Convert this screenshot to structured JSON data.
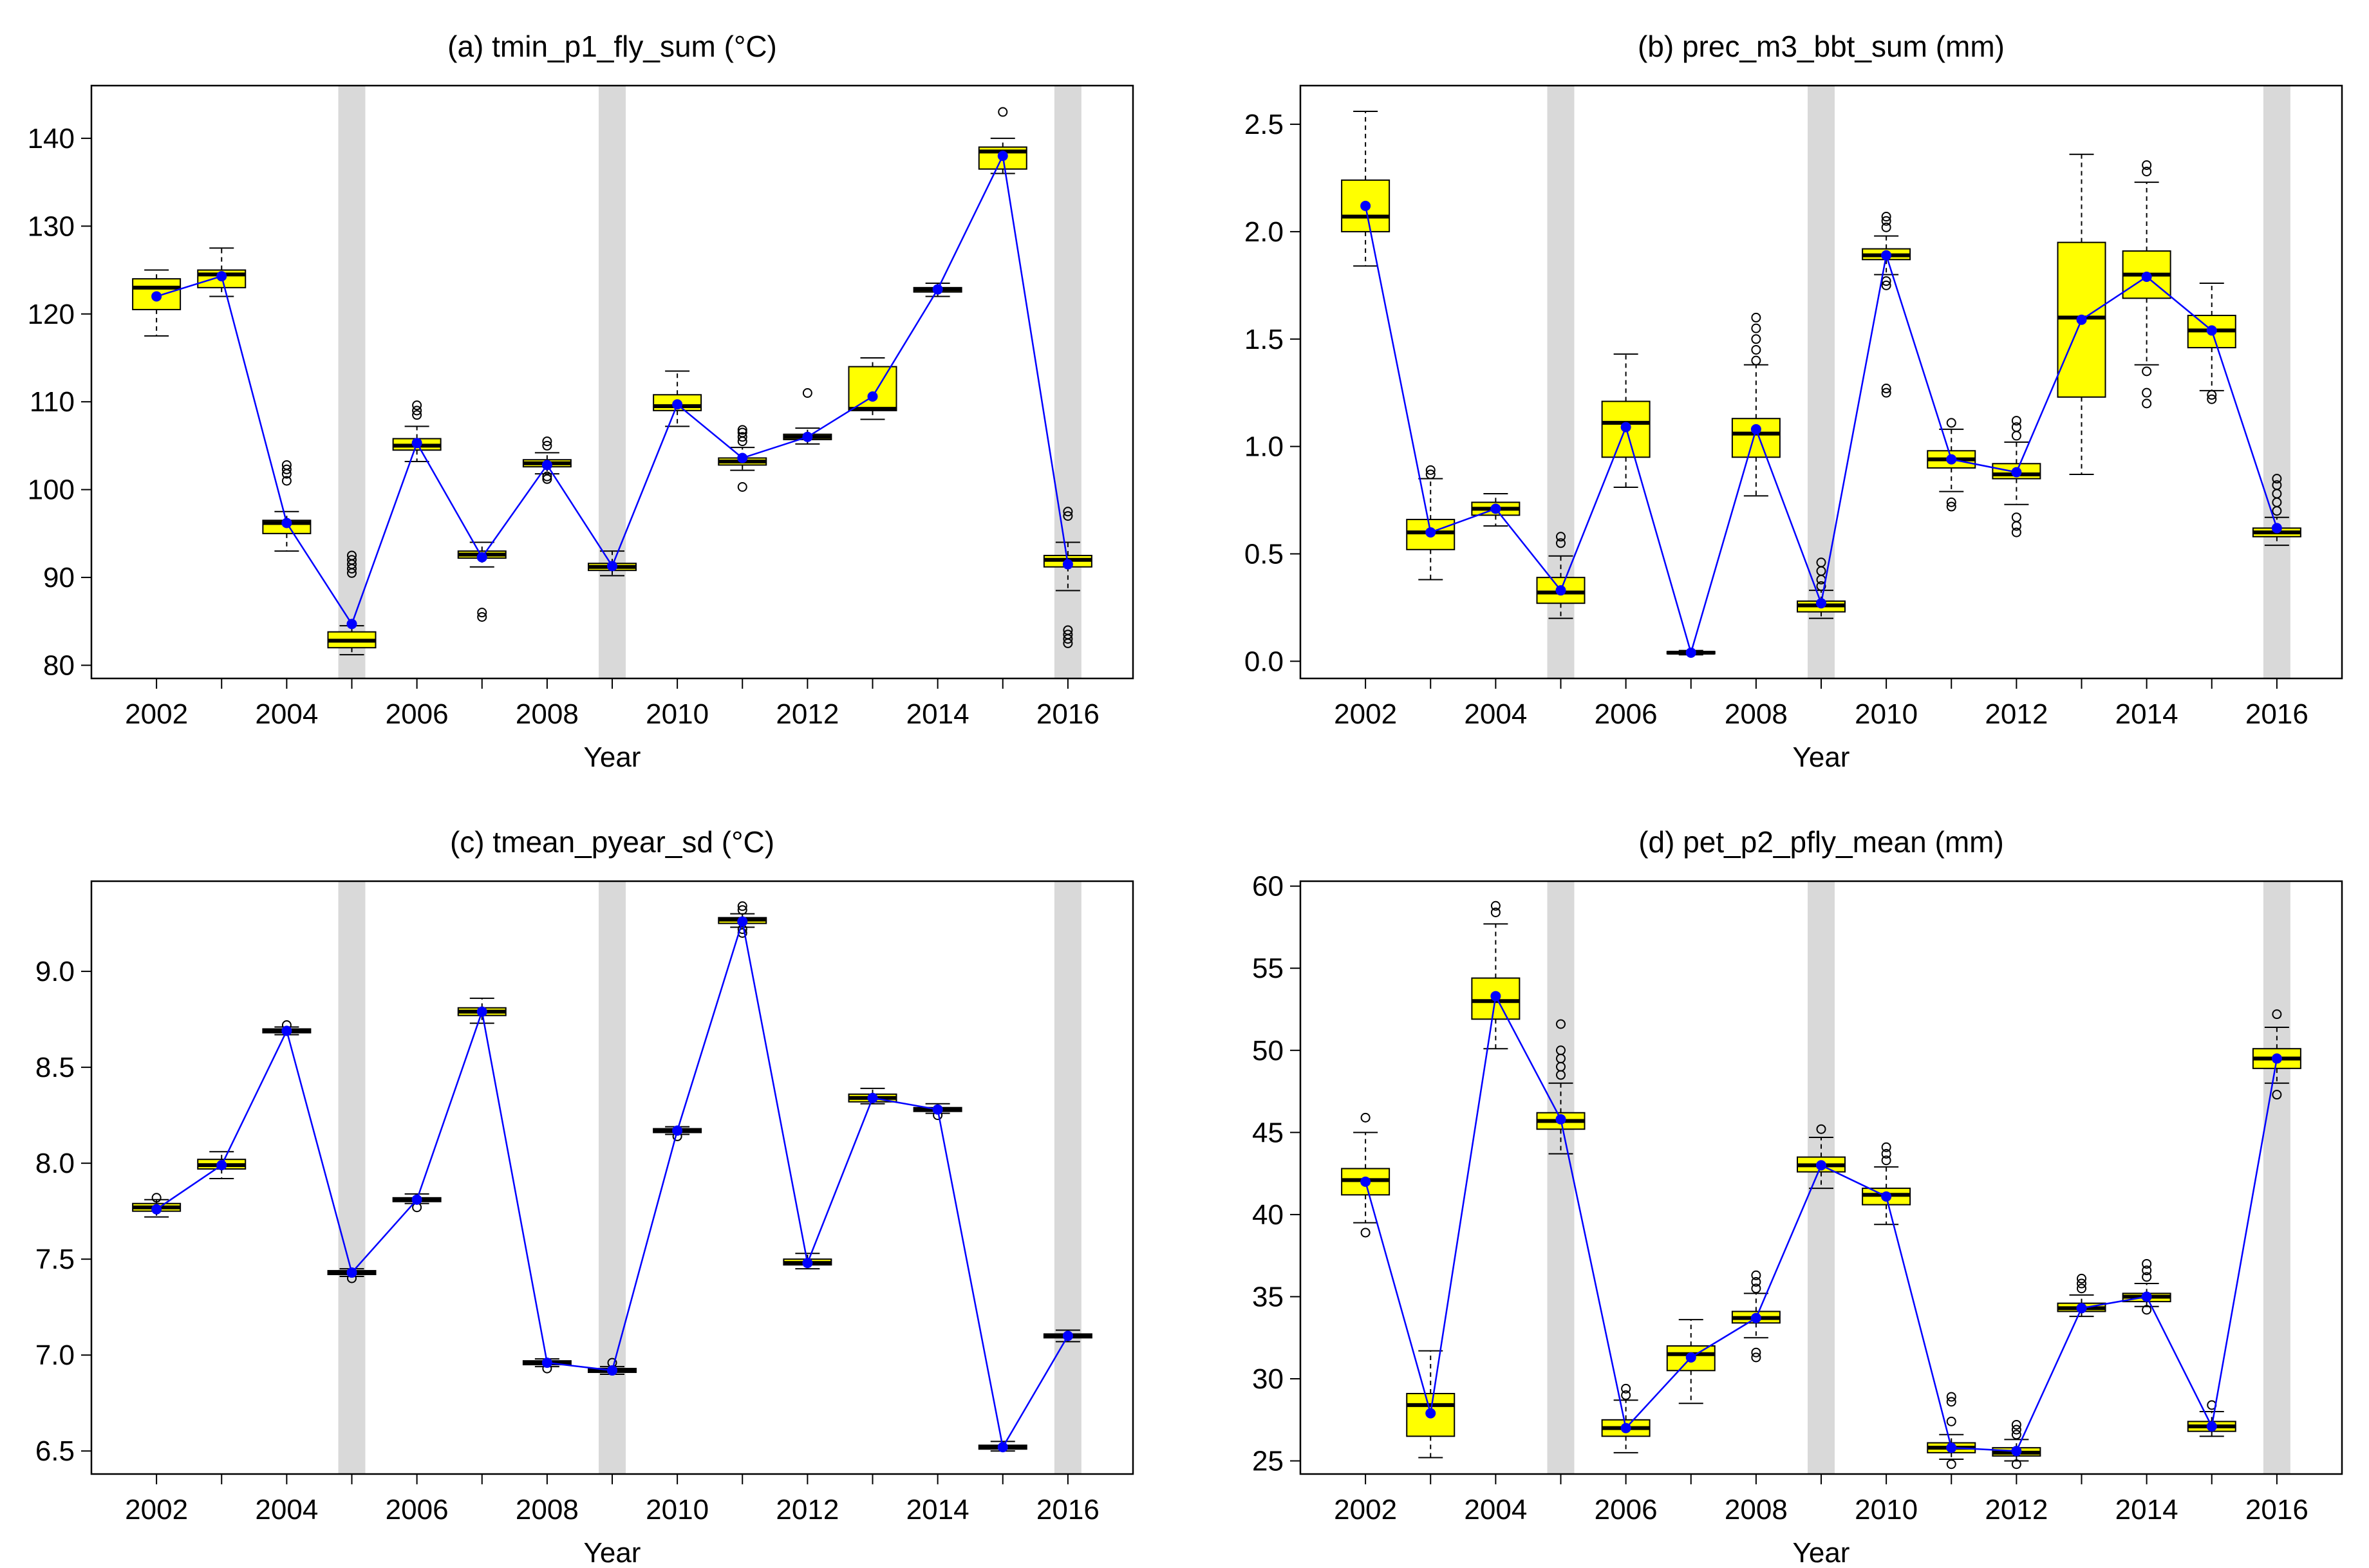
{
  "figure": {
    "xlabel": "Year",
    "series_line_color": "#0000ff",
    "box_fill_color": "#ffff00",
    "shade_color": "#d9d9d9"
  },
  "chart_data": [
    {
      "type": "boxplot",
      "title": "(a) tmin_p1_fly_sum (°C)",
      "xlabel": "Year",
      "ylabel": "",
      "xlim": [
        2001,
        2017
      ],
      "ylim": [
        78.5,
        146
      ],
      "x_ticks": [
        2002,
        2004,
        2006,
        2008,
        2010,
        2012,
        2014,
        2016
      ],
      "y_ticks": [
        80,
        90,
        100,
        110,
        120,
        130,
        140
      ],
      "highlighted_years": [
        2005,
        2009,
        2016
      ],
      "boxes": [
        {
          "year": 2002,
          "wlo": 117.5,
          "q1": 120.5,
          "median": 123,
          "q3": 124,
          "whi": 125,
          "mean": 122,
          "outliers": []
        },
        {
          "year": 2003,
          "wlo": 122,
          "q1": 123,
          "median": 124.5,
          "q3": 125,
          "whi": 127.5,
          "mean": 124.3,
          "outliers": []
        },
        {
          "year": 2004,
          "wlo": 93,
          "q1": 95,
          "median": 96.2,
          "q3": 96.5,
          "whi": 97.5,
          "mean": 96.2,
          "outliers": [
            101,
            101.8,
            102.3,
            102.8
          ]
        },
        {
          "year": 2005,
          "wlo": 81.2,
          "q1": 82,
          "median": 82.8,
          "q3": 83.8,
          "whi": 84.5,
          "mean": 84.7,
          "outliers": [
            90.5,
            91,
            91.5,
            92,
            92.5
          ]
        },
        {
          "year": 2006,
          "wlo": 103.2,
          "q1": 104.5,
          "median": 105,
          "q3": 105.8,
          "whi": 107.2,
          "mean": 105.3,
          "outliers": [
            108.5,
            109,
            109.6
          ]
        },
        {
          "year": 2007,
          "wlo": 91.2,
          "q1": 92.2,
          "median": 92.6,
          "q3": 93,
          "whi": 94,
          "mean": 92.3,
          "outliers": [
            85.5,
            86
          ]
        },
        {
          "year": 2008,
          "wlo": 101.8,
          "q1": 102.6,
          "median": 103,
          "q3": 103.4,
          "whi": 104.2,
          "mean": 102.8,
          "outliers": [
            101.2,
            101.5,
            105,
            105.5
          ]
        },
        {
          "year": 2009,
          "wlo": 90.2,
          "q1": 90.8,
          "median": 91.2,
          "q3": 91.6,
          "whi": 93,
          "mean": 91.3,
          "outliers": []
        },
        {
          "year": 2010,
          "wlo": 107.2,
          "q1": 109,
          "median": 109.5,
          "q3": 110.8,
          "whi": 113.5,
          "mean": 109.7,
          "outliers": []
        },
        {
          "year": 2011,
          "wlo": 102.2,
          "q1": 102.8,
          "median": 103.2,
          "q3": 103.6,
          "whi": 104.8,
          "mean": 103.6,
          "outliers": [
            100.3,
            105.5,
            106,
            106.5,
            106.8
          ]
        },
        {
          "year": 2012,
          "wlo": 105.2,
          "q1": 105.7,
          "median": 106,
          "q3": 106.3,
          "whi": 107,
          "mean": 106,
          "outliers": [
            111
          ]
        },
        {
          "year": 2013,
          "wlo": 108,
          "q1": 109,
          "median": 109.2,
          "q3": 114,
          "whi": 115,
          "mean": 110.6,
          "outliers": []
        },
        {
          "year": 2014,
          "wlo": 122,
          "q1": 122.5,
          "median": 122.8,
          "q3": 123,
          "whi": 123.5,
          "mean": 122.8,
          "outliers": []
        },
        {
          "year": 2015,
          "wlo": 136,
          "q1": 136.5,
          "median": 138.5,
          "q3": 139,
          "whi": 140,
          "mean": 138,
          "outliers": [
            143
          ]
        },
        {
          "year": 2016,
          "wlo": 88.5,
          "q1": 91.2,
          "median": 92,
          "q3": 92.5,
          "whi": 94,
          "mean": 91.5,
          "outliers": [
            82.5,
            83,
            83.5,
            84,
            97,
            97.5
          ]
        }
      ]
    },
    {
      "type": "boxplot",
      "title": "(b) prec_m3_bbt_sum (mm)",
      "xlabel": "Year",
      "ylabel": "",
      "xlim": [
        2001,
        2017
      ],
      "ylim": [
        -0.08,
        2.68
      ],
      "x_ticks": [
        2002,
        2004,
        2006,
        2008,
        2010,
        2012,
        2014,
        2016
      ],
      "y_ticks": [
        0.0,
        0.5,
        1.0,
        1.5,
        2.0,
        2.5
      ],
      "y_tick_labels": [
        "0.0",
        "0.5",
        "1.0",
        "1.5",
        "2.0",
        "2.5"
      ],
      "highlighted_years": [
        2005,
        2009,
        2016
      ],
      "boxes": [
        {
          "year": 2002,
          "wlo": 1.84,
          "q1": 2.0,
          "median": 2.07,
          "q3": 2.24,
          "whi": 2.56,
          "mean": 2.12,
          "outliers": []
        },
        {
          "year": 2003,
          "wlo": 0.38,
          "q1": 0.52,
          "median": 0.6,
          "q3": 0.66,
          "whi": 0.85,
          "mean": 0.6,
          "outliers": [
            0.87,
            0.89
          ]
        },
        {
          "year": 2004,
          "wlo": 0.63,
          "q1": 0.68,
          "median": 0.71,
          "q3": 0.74,
          "whi": 0.78,
          "mean": 0.71,
          "outliers": []
        },
        {
          "year": 2005,
          "wlo": 0.2,
          "q1": 0.27,
          "median": 0.32,
          "q3": 0.39,
          "whi": 0.49,
          "mean": 0.33,
          "outliers": [
            0.55,
            0.58
          ]
        },
        {
          "year": 2006,
          "wlo": 0.81,
          "q1": 0.95,
          "median": 1.11,
          "q3": 1.21,
          "whi": 1.43,
          "mean": 1.09,
          "outliers": []
        },
        {
          "year": 2007,
          "wlo": 0.03,
          "q1": 0.035,
          "median": 0.04,
          "q3": 0.045,
          "whi": 0.05,
          "mean": 0.04,
          "outliers": []
        },
        {
          "year": 2008,
          "wlo": 0.77,
          "q1": 0.95,
          "median": 1.06,
          "q3": 1.13,
          "whi": 1.38,
          "mean": 1.08,
          "outliers": [
            1.4,
            1.45,
            1.5,
            1.55,
            1.6
          ]
        },
        {
          "year": 2009,
          "wlo": 0.2,
          "q1": 0.23,
          "median": 0.26,
          "q3": 0.28,
          "whi": 0.33,
          "mean": 0.27,
          "outliers": [
            0.35,
            0.38,
            0.42,
            0.46
          ]
        },
        {
          "year": 2010,
          "wlo": 1.8,
          "q1": 1.87,
          "median": 1.89,
          "q3": 1.92,
          "whi": 1.98,
          "mean": 1.89,
          "outliers": [
            1.25,
            1.27,
            1.75,
            1.77,
            2.02,
            2.05,
            2.07
          ]
        },
        {
          "year": 2011,
          "wlo": 0.79,
          "q1": 0.9,
          "median": 0.94,
          "q3": 0.98,
          "whi": 1.08,
          "mean": 0.94,
          "outliers": [
            0.72,
            0.74,
            1.11
          ]
        },
        {
          "year": 2012,
          "wlo": 0.73,
          "q1": 0.85,
          "median": 0.87,
          "q3": 0.92,
          "whi": 1.02,
          "mean": 0.88,
          "outliers": [
            0.6,
            0.63,
            0.67,
            1.05,
            1.09,
            1.12
          ]
        },
        {
          "year": 2013,
          "wlo": 0.87,
          "q1": 1.23,
          "median": 1.6,
          "q3": 1.95,
          "whi": 2.36,
          "mean": 1.59,
          "outliers": []
        },
        {
          "year": 2014,
          "wlo": 1.38,
          "q1": 1.69,
          "median": 1.8,
          "q3": 1.91,
          "whi": 2.23,
          "mean": 1.79,
          "outliers": [
            1.2,
            1.25,
            1.35,
            2.28,
            2.31
          ]
        },
        {
          "year": 2015,
          "wlo": 1.26,
          "q1": 1.46,
          "median": 1.54,
          "q3": 1.61,
          "whi": 1.76,
          "mean": 1.54,
          "outliers": [
            1.22,
            1.24
          ]
        },
        {
          "year": 2016,
          "wlo": 0.54,
          "q1": 0.58,
          "median": 0.6,
          "q3": 0.62,
          "whi": 0.67,
          "mean": 0.62,
          "outliers": [
            0.7,
            0.74,
            0.78,
            0.82,
            0.85
          ]
        }
      ]
    },
    {
      "type": "boxplot",
      "title": "(c) tmean_pyear_sd (°C)",
      "xlabel": "Year",
      "ylabel": "",
      "xlim": [
        2001,
        2017
      ],
      "ylim": [
        6.38,
        9.47
      ],
      "x_ticks": [
        2002,
        2004,
        2006,
        2008,
        2010,
        2012,
        2014,
        2016
      ],
      "y_ticks": [
        6.5,
        7.0,
        7.5,
        8.0,
        8.5,
        9.0
      ],
      "y_tick_labels": [
        "6.5",
        "7.0",
        "7.5",
        "8.0",
        "8.5",
        "9.0"
      ],
      "highlighted_years": [
        2005,
        2009,
        2016
      ],
      "boxes": [
        {
          "year": 2002,
          "wlo": 7.72,
          "q1": 7.75,
          "median": 7.77,
          "q3": 7.79,
          "whi": 7.81,
          "mean": 7.76,
          "outliers": [
            7.82
          ]
        },
        {
          "year": 2003,
          "wlo": 7.92,
          "q1": 7.97,
          "median": 7.99,
          "q3": 8.02,
          "whi": 8.06,
          "mean": 7.99,
          "outliers": []
        },
        {
          "year": 2004,
          "wlo": 8.67,
          "q1": 8.68,
          "median": 8.69,
          "q3": 8.7,
          "whi": 8.71,
          "mean": 8.69,
          "outliers": [
            8.72
          ]
        },
        {
          "year": 2005,
          "wlo": 7.41,
          "q1": 7.42,
          "median": 7.43,
          "q3": 7.44,
          "whi": 7.45,
          "mean": 7.43,
          "outliers": [
            7.4
          ]
        },
        {
          "year": 2006,
          "wlo": 7.79,
          "q1": 7.8,
          "median": 7.81,
          "q3": 7.82,
          "whi": 7.84,
          "mean": 7.81,
          "outliers": [
            7.77
          ]
        },
        {
          "year": 2007,
          "wlo": 8.73,
          "q1": 8.77,
          "median": 8.79,
          "q3": 8.81,
          "whi": 8.86,
          "mean": 8.79,
          "outliers": []
        },
        {
          "year": 2008,
          "wlo": 6.94,
          "q1": 6.95,
          "median": 6.96,
          "q3": 6.97,
          "whi": 6.98,
          "mean": 6.96,
          "outliers": [
            6.93
          ]
        },
        {
          "year": 2009,
          "wlo": 6.9,
          "q1": 6.91,
          "median": 6.92,
          "q3": 6.93,
          "whi": 6.94,
          "mean": 6.92,
          "outliers": [
            6.96
          ]
        },
        {
          "year": 2010,
          "wlo": 8.15,
          "q1": 8.16,
          "median": 8.17,
          "q3": 8.18,
          "whi": 8.19,
          "mean": 8.17,
          "outliers": [
            8.14
          ]
        },
        {
          "year": 2011,
          "wlo": 9.23,
          "q1": 9.25,
          "median": 9.27,
          "q3": 9.28,
          "whi": 9.3,
          "mean": 9.26,
          "outliers": [
            9.2,
            9.22,
            9.32,
            9.34
          ]
        },
        {
          "year": 2012,
          "wlo": 7.45,
          "q1": 7.47,
          "median": 7.48,
          "q3": 7.5,
          "whi": 7.53,
          "mean": 7.48,
          "outliers": []
        },
        {
          "year": 2013,
          "wlo": 8.31,
          "q1": 8.32,
          "median": 8.34,
          "q3": 8.36,
          "whi": 8.39,
          "mean": 8.34,
          "outliers": []
        },
        {
          "year": 2014,
          "wlo": 8.26,
          "q1": 8.27,
          "median": 8.28,
          "q3": 8.29,
          "whi": 8.31,
          "mean": 8.28,
          "outliers": [
            8.25
          ]
        },
        {
          "year": 2015,
          "wlo": 6.5,
          "q1": 6.51,
          "median": 6.52,
          "q3": 6.53,
          "whi": 6.55,
          "mean": 6.52,
          "outliers": []
        },
        {
          "year": 2016,
          "wlo": 7.07,
          "q1": 7.09,
          "median": 7.1,
          "q3": 7.11,
          "whi": 7.13,
          "mean": 7.1,
          "outliers": []
        }
      ]
    },
    {
      "type": "boxplot",
      "title": "(d) pet_p2_pfly_mean (mm)",
      "xlabel": "Year",
      "ylabel": "",
      "xlim": [
        2001,
        2017
      ],
      "ylim": [
        24.2,
        60.3
      ],
      "x_ticks": [
        2002,
        2004,
        2006,
        2008,
        2010,
        2012,
        2014,
        2016
      ],
      "y_ticks": [
        25,
        30,
        35,
        40,
        45,
        50,
        55,
        60
      ],
      "highlighted_years": [
        2005,
        2009,
        2016
      ],
      "boxes": [
        {
          "year": 2002,
          "wlo": 39.5,
          "q1": 41.2,
          "median": 42.1,
          "q3": 42.8,
          "whi": 45,
          "mean": 42,
          "outliers": [
            38.9,
            45.9
          ]
        },
        {
          "year": 2003,
          "wlo": 25.2,
          "q1": 26.5,
          "median": 28.4,
          "q3": 29.1,
          "whi": 31.7,
          "mean": 27.9,
          "outliers": []
        },
        {
          "year": 2004,
          "wlo": 50.1,
          "q1": 51.9,
          "median": 53,
          "q3": 54.4,
          "whi": 57.7,
          "mean": 53.3,
          "outliers": [
            58.4,
            58.8
          ]
        },
        {
          "year": 2005,
          "wlo": 43.7,
          "q1": 45.2,
          "median": 45.7,
          "q3": 46.2,
          "whi": 48,
          "mean": 45.8,
          "outliers": [
            48.5,
            49,
            49.5,
            50,
            51.6
          ]
        },
        {
          "year": 2006,
          "wlo": 25.5,
          "q1": 26.5,
          "median": 27,
          "q3": 27.5,
          "whi": 28.7,
          "mean": 27,
          "outliers": [
            29,
            29.4
          ]
        },
        {
          "year": 2007,
          "wlo": 28.5,
          "q1": 30.5,
          "median": 31.5,
          "q3": 32,
          "whi": 33.6,
          "mean": 31.3,
          "outliers": []
        },
        {
          "year": 2008,
          "wlo": 32.5,
          "q1": 33.4,
          "median": 33.7,
          "q3": 34.1,
          "whi": 35.2,
          "mean": 33.7,
          "outliers": [
            31.3,
            31.6,
            35.5,
            35.9,
            36.3
          ]
        },
        {
          "year": 2009,
          "wlo": 41.6,
          "q1": 42.6,
          "median": 43,
          "q3": 43.5,
          "whi": 44.7,
          "mean": 43,
          "outliers": [
            45.2
          ]
        },
        {
          "year": 2010,
          "wlo": 39.4,
          "q1": 40.6,
          "median": 41.2,
          "q3": 41.6,
          "whi": 42.9,
          "mean": 41.1,
          "outliers": [
            43.3,
            43.7,
            44.1
          ]
        },
        {
          "year": 2011,
          "wlo": 25.1,
          "q1": 25.5,
          "median": 25.8,
          "q3": 26.1,
          "whi": 26.6,
          "mean": 25.8,
          "outliers": [
            24.8,
            27.4,
            28.6,
            28.9
          ]
        },
        {
          "year": 2012,
          "wlo": 25,
          "q1": 25.3,
          "median": 25.5,
          "q3": 25.8,
          "whi": 26.3,
          "mean": 25.6,
          "outliers": [
            24.8,
            26.6,
            26.9,
            27.2
          ]
        },
        {
          "year": 2013,
          "wlo": 33.8,
          "q1": 34.1,
          "median": 34.3,
          "q3": 34.6,
          "whi": 35.1,
          "mean": 34.3,
          "outliers": [
            35.5,
            35.8,
            36.1
          ]
        },
        {
          "year": 2014,
          "wlo": 34.4,
          "q1": 34.7,
          "median": 35,
          "q3": 35.2,
          "whi": 35.8,
          "mean": 35,
          "outliers": [
            34.2,
            36.2,
            36.6,
            37
          ]
        },
        {
          "year": 2015,
          "wlo": 26.5,
          "q1": 26.8,
          "median": 27.1,
          "q3": 27.4,
          "whi": 28,
          "mean": 27.1,
          "outliers": [
            28.4
          ]
        },
        {
          "year": 2016,
          "wlo": 48,
          "q1": 48.9,
          "median": 49.5,
          "q3": 50.1,
          "whi": 51.4,
          "mean": 49.5,
          "outliers": [
            47.3,
            52.2
          ]
        }
      ]
    }
  ]
}
